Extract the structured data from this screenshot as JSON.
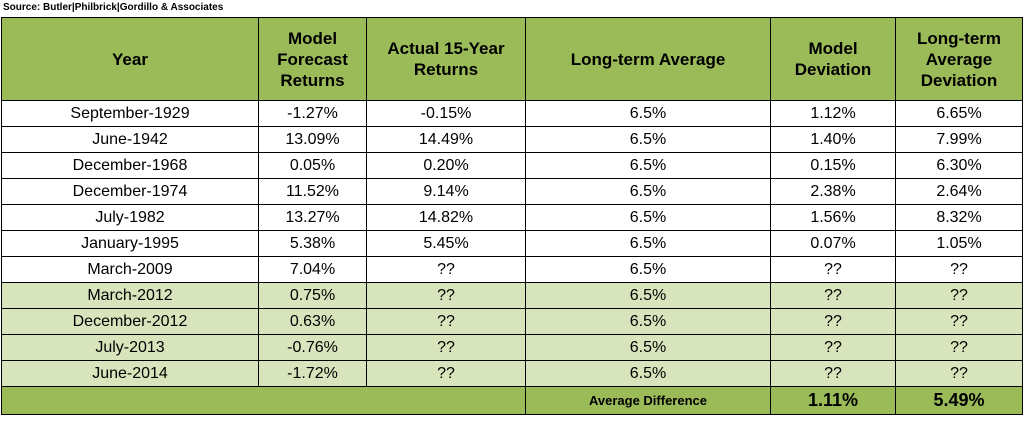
{
  "source": "Source: Butler|Philbrick|Gordillo & Associates",
  "table": {
    "header": [
      "Year",
      "Model Forecast Returns",
      "Actual 15-Year Returns",
      "Long-term Average",
      "Model Deviation",
      "Long-term Average Deviation"
    ],
    "rows": [
      [
        "September-1929",
        "-1.27%",
        "-0.15%",
        "6.5%",
        "1.12%",
        "6.65%"
      ],
      [
        "June-1942",
        "13.09%",
        "14.49%",
        "6.5%",
        "1.40%",
        "7.99%"
      ],
      [
        "December-1968",
        "0.05%",
        "0.20%",
        "6.5%",
        "0.15%",
        "6.30%"
      ],
      [
        "December-1974",
        "11.52%",
        "9.14%",
        "6.5%",
        "2.38%",
        "2.64%"
      ],
      [
        "July-1982",
        "13.27%",
        "14.82%",
        "6.5%",
        "1.56%",
        "8.32%"
      ],
      [
        "January-1995",
        "5.38%",
        "5.45%",
        "6.5%",
        "0.07%",
        "1.05%"
      ],
      [
        "March-2009",
        "7.04%",
        "??",
        "6.5%",
        "??",
        "??"
      ],
      [
        "March-2012",
        "0.75%",
        "??",
        "6.5%",
        "??",
        "??"
      ],
      [
        "December-2012",
        "0.63%",
        "??",
        "6.5%",
        "??",
        "??"
      ],
      [
        "July-2013",
        "-0.76%",
        "??",
        "6.5%",
        "??",
        "??"
      ],
      [
        "June-2014",
        "-1.72%",
        "??",
        "6.5%",
        "??",
        "??"
      ]
    ],
    "footer": {
      "label": "Average Difference",
      "model_deviation": "1.11%",
      "long_term_deviation": "5.49%"
    }
  }
}
